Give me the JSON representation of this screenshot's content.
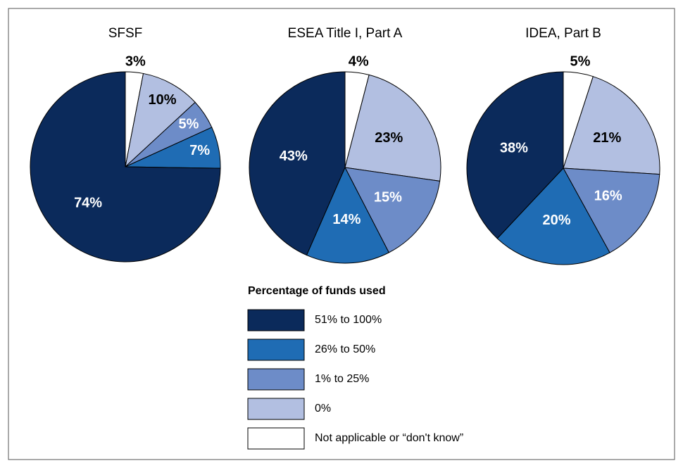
{
  "chart_data": [
    {
      "type": "pie",
      "title": "SFSF",
      "values": [
        74,
        7,
        5,
        10,
        3
      ],
      "value_labels": [
        "74%",
        "7%",
        "5%",
        "10%",
        "3%"
      ]
    },
    {
      "type": "pie",
      "title": "ESEA Title I, Part A",
      "values": [
        43,
        14,
        15,
        23,
        4
      ],
      "value_labels": [
        "43%",
        "14%",
        "15%",
        "23%",
        "4%"
      ]
    },
    {
      "type": "pie",
      "title": "IDEA, Part B",
      "values": [
        38,
        20,
        16,
        21,
        5
      ],
      "value_labels": [
        "38%",
        "20%",
        "16%",
        "21%",
        "5%"
      ]
    }
  ],
  "legend": {
    "title": "Percentage of funds used",
    "entries": [
      {
        "name": "51% to 100%",
        "color": "#0b2a5b"
      },
      {
        "name": "26% to 50%",
        "color": "#1f6cb4"
      },
      {
        "name": "1% to 25%",
        "color": "#6d8cc8"
      },
      {
        "name": "0%",
        "color": "#b2bfe1"
      },
      {
        "name": "Not applicable or “don't know”",
        "color": "#ffffff"
      }
    ]
  }
}
